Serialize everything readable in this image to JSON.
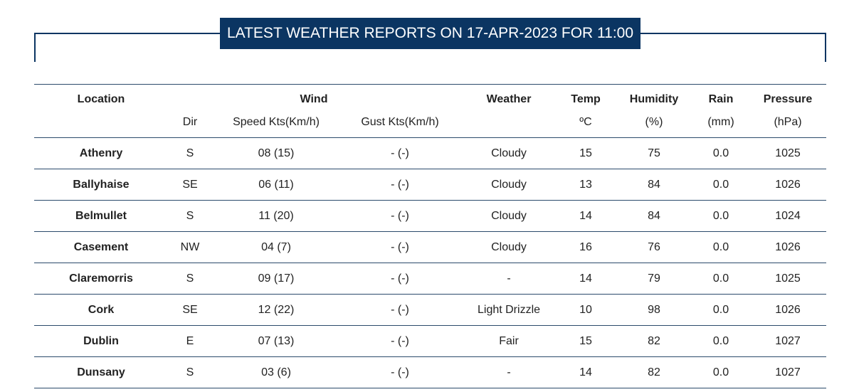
{
  "title": "LATEST WEATHER REPORTS ON 17-APR-2023 FOR 11:00",
  "table": {
    "header_top": [
      "Location",
      "Wind",
      "Weather",
      "Temp",
      "Humidity",
      "Rain",
      "Pressure"
    ],
    "header_sub": [
      "Dir",
      "Speed Kts(Km/h)",
      "Gust Kts(Km/h)",
      "ºC",
      "(%)",
      "(mm)",
      "(hPa)"
    ],
    "rows": [
      [
        "Athenry",
        "S",
        "08 (15)",
        "- (-)",
        "Cloudy",
        "15",
        "75",
        "0.0",
        "1025"
      ],
      [
        "Ballyhaise",
        "SE",
        "06 (11)",
        "- (-)",
        "Cloudy",
        "13",
        "84",
        "0.0",
        "1026"
      ],
      [
        "Belmullet",
        "S",
        "11 (20)",
        "- (-)",
        "Cloudy",
        "14",
        "84",
        "0.0",
        "1024"
      ],
      [
        "Casement",
        "NW",
        "04 (7)",
        "- (-)",
        "Cloudy",
        "16",
        "76",
        "0.0",
        "1026"
      ],
      [
        "Claremorris",
        "S",
        "09 (17)",
        "- (-)",
        "-",
        "14",
        "79",
        "0.0",
        "1025"
      ],
      [
        "Cork",
        "SE",
        "12 (22)",
        "- (-)",
        "Light Drizzle",
        "10",
        "98",
        "0.0",
        "1026"
      ],
      [
        "Dublin",
        "E",
        "07 (13)",
        "- (-)",
        "Fair",
        "15",
        "82",
        "0.0",
        "1027"
      ],
      [
        "Dunsany",
        "S",
        "03 (6)",
        "- (-)",
        "-",
        "14",
        "82",
        "0.0",
        "1027"
      ]
    ]
  }
}
